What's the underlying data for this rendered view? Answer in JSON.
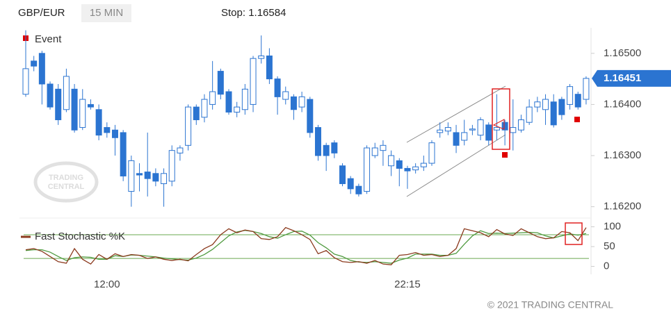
{
  "header": {
    "symbol": "GBP/EUR",
    "interval": "15 MIN",
    "stop": "Stop: 1.16584"
  },
  "event_label": "Event",
  "watermark": [
    "TRADING",
    "CENTRAL"
  ],
  "footer": "© 2021 TRADING CENTRAL",
  "chart_data": [
    {
      "type": "candlestick",
      "categories": [
        null,
        null,
        null,
        null,
        null,
        null,
        null,
        null,
        null,
        null,
        "12:00",
        null,
        null,
        null,
        null,
        null,
        null,
        null,
        null,
        null,
        null,
        null,
        null,
        null,
        null,
        null,
        null,
        null,
        null,
        null,
        null,
        null,
        null,
        null,
        null,
        null,
        null,
        null,
        null,
        null,
        null,
        null,
        null,
        null,
        null,
        null,
        null,
        "22:15",
        null,
        null,
        null,
        null,
        null,
        null,
        null,
        null,
        null,
        null,
        null,
        null,
        null,
        null,
        null,
        null,
        null,
        null,
        null,
        null,
        null,
        null
      ],
      "open": [
        1.1642,
        1.16485,
        1.165,
        1.1644,
        1.1643,
        1.1639,
        1.1643,
        1.16355,
        1.164,
        1.1639,
        1.16355,
        1.1635,
        1.16345,
        1.1623,
        1.16265,
        1.16268,
        1.16265,
        1.16245,
        1.1625,
        1.16305,
        1.1632,
        1.16395,
        1.16375,
        1.164,
        1.16465,
        1.16425,
        1.16385,
        1.1639,
        1.164,
        1.1649,
        1.16495,
        1.1645,
        1.1641,
        1.16415,
        1.16395,
        1.1641,
        1.16355,
        1.1632,
        1.16325,
        1.1628,
        1.16255,
        1.1624,
        1.1623,
        1.163,
        1.1631,
        1.1628,
        1.1629,
        1.16275,
        1.16272,
        1.16278,
        1.16285,
        1.16345,
        1.16348,
        1.16345,
        1.1633,
        1.1635,
        1.1634,
        1.1636,
        1.1635,
        1.16365,
        1.16345,
        1.1635,
        1.16365,
        1.16395,
        1.1639,
        1.16405,
        1.1641,
        1.164,
        1.1642,
        1.1641
      ],
      "high": [
        1.16545,
        1.16495,
        1.16505,
        1.16445,
        1.1644,
        1.1647,
        1.1644,
        1.1643,
        1.1641,
        1.164,
        1.16365,
        1.1636,
        1.1635,
        1.163,
        1.16285,
        1.16345,
        1.16275,
        1.16275,
        1.1632,
        1.1632,
        1.164,
        1.164,
        1.1642,
        1.16485,
        1.1647,
        1.1643,
        1.16405,
        1.1644,
        1.16495,
        1.16535,
        1.1651,
        1.16455,
        1.16435,
        1.1642,
        1.16425,
        1.16415,
        1.1636,
        1.16325,
        1.1633,
        1.16285,
        1.1626,
        1.16245,
        1.1632,
        1.16325,
        1.1633,
        1.1631,
        1.16295,
        1.1628,
        1.16285,
        1.163,
        1.1633,
        1.16365,
        1.16365,
        1.1636,
        1.1637,
        1.1636,
        1.16375,
        1.16365,
        1.1642,
        1.1637,
        1.1641,
        1.1638,
        1.1641,
        1.16415,
        1.1642,
        1.1642,
        1.16415,
        1.1644,
        1.16425,
        1.16455
      ],
      "low": [
        1.16415,
        1.16465,
        1.164,
        1.1639,
        1.1636,
        1.16385,
        1.16345,
        1.1635,
        1.1639,
        1.1633,
        1.16335,
        1.163,
        1.1625,
        1.162,
        1.1623,
        1.1622,
        1.1624,
        1.162,
        1.1624,
        1.1629,
        1.1631,
        1.1636,
        1.16365,
        1.1639,
        1.1641,
        1.1638,
        1.16375,
        1.1638,
        1.16385,
        1.1648,
        1.1644,
        1.1638,
        1.164,
        1.1637,
        1.16385,
        1.16335,
        1.1629,
        1.1627,
        1.16295,
        1.1624,
        1.16225,
        1.1622,
        1.16225,
        1.16295,
        1.1628,
        1.1626,
        1.1624,
        1.16235,
        1.16265,
        1.1627,
        1.1628,
        1.16335,
        1.1634,
        1.16305,
        1.1632,
        1.1634,
        1.1633,
        1.1632,
        1.1633,
        1.1632,
        1.1631,
        1.16345,
        1.1636,
        1.16385,
        1.1636,
        1.16355,
        1.1637,
        1.1639,
        1.1639,
        1.164
      ],
      "close": [
        1.1647,
        1.16475,
        1.1644,
        1.16395,
        1.1637,
        1.16455,
        1.1635,
        1.1641,
        1.16395,
        1.1634,
        1.16345,
        1.16335,
        1.1626,
        1.1629,
        1.16262,
        1.16255,
        1.1625,
        1.16265,
        1.1631,
        1.16315,
        1.16395,
        1.1637,
        1.1641,
        1.16425,
        1.1642,
        1.16385,
        1.16395,
        1.1643,
        1.1649,
        1.16495,
        1.1645,
        1.16415,
        1.16425,
        1.1639,
        1.16415,
        1.16345,
        1.163,
        1.163,
        1.16305,
        1.16245,
        1.16235,
        1.16225,
        1.16315,
        1.16315,
        1.1632,
        1.163,
        1.16275,
        1.1627,
        1.16278,
        1.16285,
        1.16325,
        1.1635,
        1.16355,
        1.1632,
        1.16345,
        1.16352,
        1.1637,
        1.1633,
        1.16355,
        1.1635,
        1.16355,
        1.1637,
        1.16395,
        1.16405,
        1.1641,
        1.1636,
        1.1638,
        1.16435,
        1.16395,
        1.16451
      ],
      "up_color": "#ffffff",
      "down_color": "#2b74d1",
      "edge_color": "#2b74d1",
      "ylim": [
        1.1619,
        1.1655
      ],
      "yticks": [
        {
          "value": 1.165,
          "label": "1.16500"
        },
        {
          "value": 1.164,
          "label": "1.16400"
        },
        {
          "value": 1.163,
          "label": "1.16300"
        },
        {
          "value": 1.162,
          "label": "1.16200"
        }
      ]
    },
    {
      "type": "line",
      "series": [
        {
          "name": "Fast Stochastic %K",
          "color": "#8b3a1e",
          "values": [
            42,
            45,
            38,
            25,
            12,
            8,
            45,
            18,
            6,
            30,
            18,
            32,
            25,
            30,
            28,
            20,
            24,
            18,
            15,
            18,
            14,
            30,
            45,
            55,
            80,
            95,
            85,
            92,
            88,
            70,
            68,
            75,
            98,
            90,
            80,
            68,
            32,
            40,
            22,
            12,
            10,
            12,
            8,
            15,
            6,
            4,
            28,
            30,
            35,
            28,
            30,
            25,
            28,
            45,
            95,
            90,
            85,
            75,
            93,
            82,
            78,
            95,
            85,
            75,
            70,
            72,
            88,
            85,
            65,
            98
          ]
        },
        {
          "color": "#4f9a3f",
          "values": [
            40,
            42,
            42,
            36,
            25,
            15,
            22,
            24,
            23,
            18,
            18,
            27,
            25,
            29,
            28,
            26,
            24,
            21,
            19,
            17,
            16,
            21,
            30,
            43,
            60,
            77,
            87,
            91,
            88,
            83,
            75,
            71,
            80,
            88,
            89,
            79,
            60,
            47,
            31,
            25,
            15,
            11,
            10,
            12,
            10,
            8,
            16,
            21,
            31,
            31,
            31,
            28,
            28,
            33,
            56,
            77,
            90,
            83,
            84,
            83,
            84,
            85,
            86,
            85,
            77,
            72,
            77,
            82,
            79,
            83
          ]
        }
      ],
      "levels": [
        20,
        80
      ],
      "level_color": "#6aa84f",
      "ylim": [
        -20,
        115
      ],
      "yticks": [
        0,
        50,
        100
      ]
    }
  ]
}
